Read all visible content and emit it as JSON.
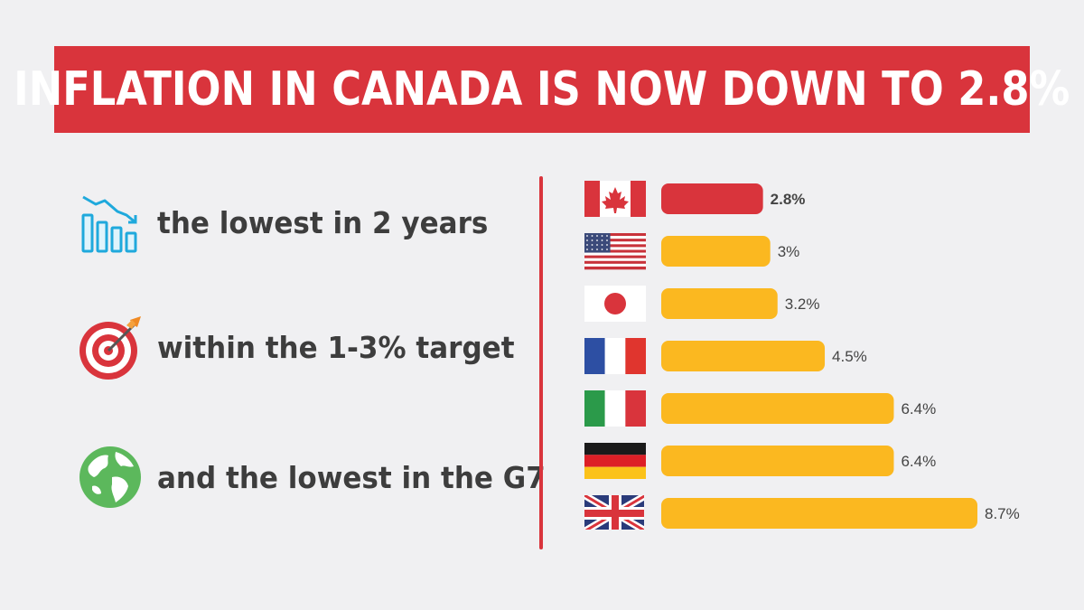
{
  "title": "INFLATION IN CANADA IS NOW DOWN TO 2.8%",
  "features": [
    {
      "icon": "declining-bar-chart-icon",
      "text": "the lowest in 2 years"
    },
    {
      "icon": "target-arrow-icon",
      "text": "within the 1-3% target"
    },
    {
      "icon": "globe-icon",
      "text": "and the lowest in the G7"
    }
  ],
  "colors": {
    "accent_red": "#d9343c",
    "bar_yellow": "#fbb820"
  },
  "chart_data": {
    "type": "bar",
    "orientation": "horizontal",
    "categories": [
      "canada-flag",
      "usa-flag",
      "japan-flag",
      "france-flag",
      "italy-flag",
      "germany-flag",
      "uk-flag"
    ],
    "values": [
      2.8,
      3,
      3.2,
      4.5,
      6.4,
      6.4,
      8.7
    ],
    "data_labels": [
      "2.8%",
      "3%",
      "3.2%",
      "4.5%",
      "6.4%",
      "6.4%",
      "8.7%"
    ],
    "highlight_index": 0,
    "xlim": [
      0,
      8.7
    ],
    "grid": false
  }
}
